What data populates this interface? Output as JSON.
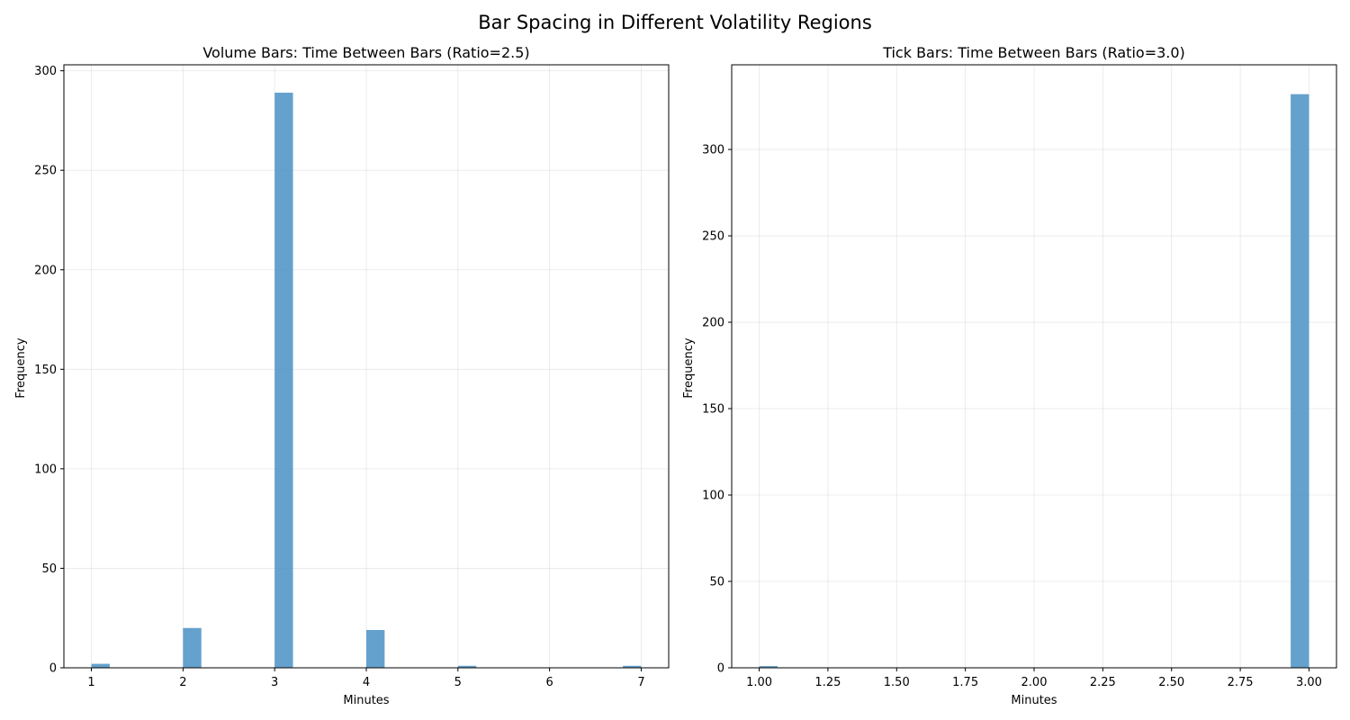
{
  "figure_title": "Bar Spacing in Different Volatility Regions",
  "chart_data": [
    {
      "type": "bar",
      "title": "Volume Bars: Time Between Bars (Ratio=2.5)",
      "xlabel": "Minutes",
      "ylabel": "Frequency",
      "xlim": [
        0.7,
        7.3
      ],
      "ylim": [
        0,
        303
      ],
      "xticks": [
        1,
        2,
        3,
        4,
        5,
        6,
        7
      ],
      "xtick_labels": [
        "1",
        "2",
        "3",
        "4",
        "5",
        "6",
        "7"
      ],
      "yticks": [
        0,
        50,
        100,
        150,
        200,
        250,
        300
      ],
      "ytick_labels": [
        "0",
        "50",
        "100",
        "150",
        "200",
        "250",
        "300"
      ],
      "bin_width": 0.2,
      "bars": [
        {
          "x0": 1.0,
          "value": 2
        },
        {
          "x0": 2.0,
          "value": 20
        },
        {
          "x0": 3.0,
          "value": 289
        },
        {
          "x0": 4.0,
          "value": 19
        },
        {
          "x0": 5.0,
          "value": 1
        },
        {
          "x0": 6.8,
          "value": 1
        }
      ],
      "color": "#4a90c4",
      "alpha": 0.85,
      "grid": true
    },
    {
      "type": "bar",
      "title": "Tick Bars: Time Between Bars (Ratio=3.0)",
      "xlabel": "Minutes",
      "ylabel": "Frequency",
      "xlim": [
        0.9,
        3.1
      ],
      "ylim": [
        0,
        349
      ],
      "xticks": [
        1.0,
        1.25,
        1.5,
        1.75,
        2.0,
        2.25,
        2.5,
        2.75,
        3.0
      ],
      "xtick_labels": [
        "1.00",
        "1.25",
        "1.50",
        "1.75",
        "2.00",
        "2.25",
        "2.50",
        "2.75",
        "3.00"
      ],
      "yticks": [
        0,
        50,
        100,
        150,
        200,
        250,
        300
      ],
      "ytick_labels": [
        "0",
        "50",
        "100",
        "150",
        "200",
        "250",
        "300"
      ],
      "bin_width": 0.0667,
      "bars": [
        {
          "x0": 1.0,
          "value": 1
        },
        {
          "x0": 2.9333,
          "value": 332
        }
      ],
      "color": "#4a90c4",
      "alpha": 0.85,
      "grid": true
    }
  ]
}
